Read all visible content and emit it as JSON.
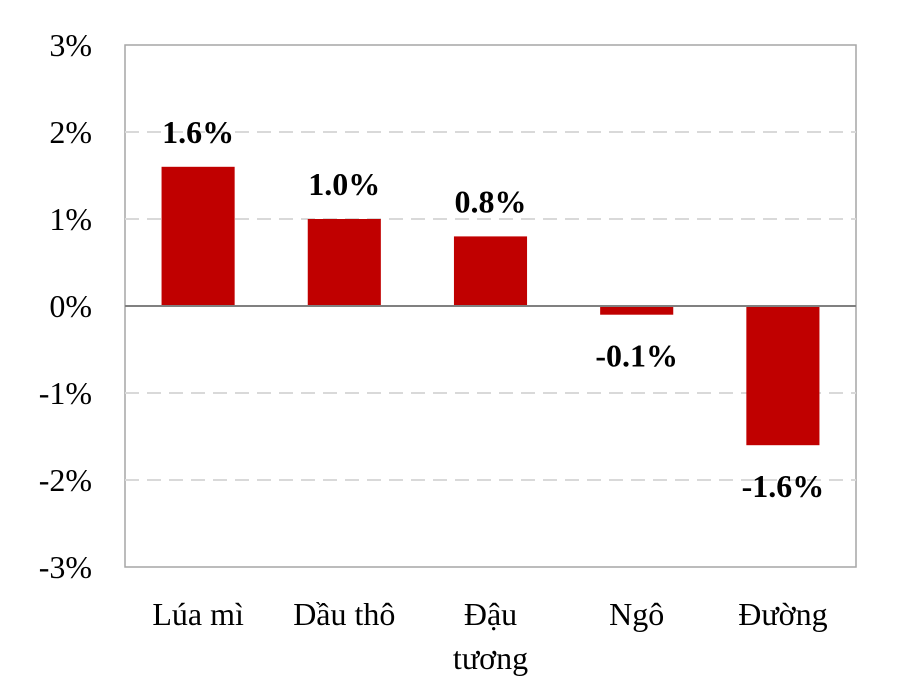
{
  "chart_data": {
    "type": "bar",
    "categories": [
      [
        "Lúa mì"
      ],
      [
        "Dầu thô"
      ],
      [
        "Đậu",
        "tương"
      ],
      [
        "Ngô"
      ],
      [
        "Đường"
      ]
    ],
    "values": [
      1.6,
      1.0,
      0.8,
      -0.1,
      -1.6
    ],
    "data_labels": [
      "1.6%",
      "1.0%",
      "0.8%",
      "-0.1%",
      "-1.6%"
    ],
    "ylim": [
      -3,
      3
    ],
    "yticks": [
      3,
      2,
      1,
      0,
      -1,
      -2,
      -3
    ],
    "ytick_labels": [
      "3%",
      "2%",
      "1%",
      "0%",
      "-1%",
      "-2%",
      "-3%"
    ],
    "title": "",
    "xlabel": "",
    "ylabel": "",
    "grid": true,
    "legend": "none",
    "bar_color": "#C00000",
    "grid_color": "#D9D9D9",
    "axis_color": "#808080",
    "frame_color": "#A6A6A6"
  }
}
